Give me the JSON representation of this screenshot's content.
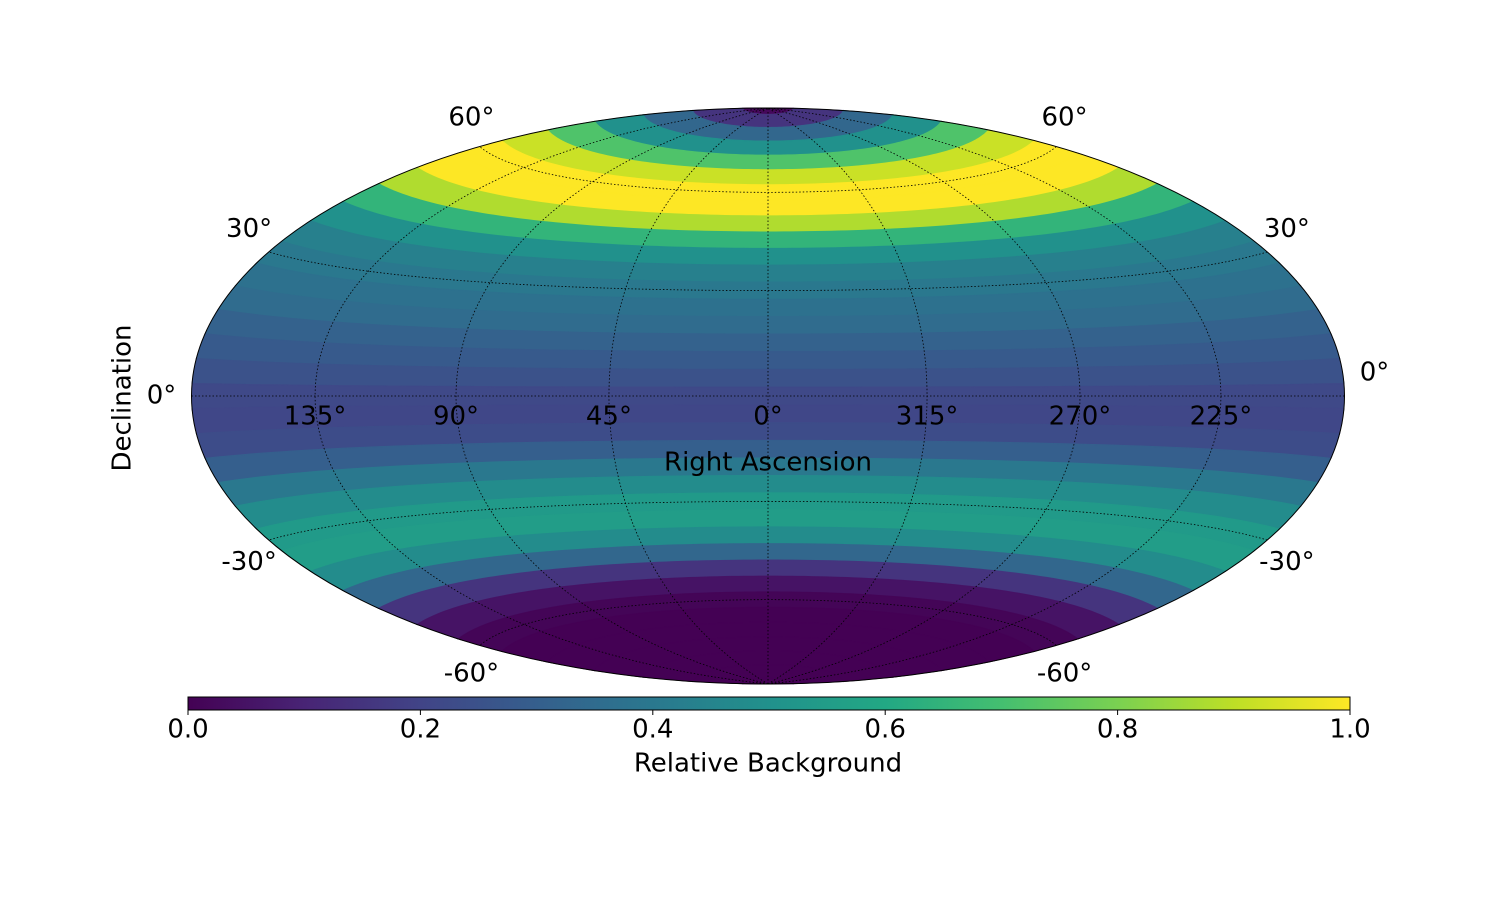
{
  "chart_data": {
    "type": "sky-map",
    "projection": "hammer",
    "colormap": "viridis",
    "xlabel": "Right Ascension",
    "ylabel": "Declination",
    "colorbar_label": "Relative Background",
    "declinations": [
      90,
      85,
      80,
      75,
      70,
      65,
      60,
      55,
      50,
      45,
      40,
      35,
      30,
      25,
      20,
      15,
      10,
      5,
      0,
      -5,
      -10,
      -15,
      -20,
      -25,
      -30,
      -35,
      -40,
      -45,
      -50,
      -55,
      -60,
      -65,
      -70,
      -75,
      -80,
      -85,
      -90
    ],
    "values": [
      0.02,
      0.15,
      0.33,
      0.5,
      0.72,
      0.92,
      1.0,
      1.0,
      0.88,
      0.65,
      0.5,
      0.43,
      0.4,
      0.37,
      0.35,
      0.31,
      0.28,
      0.25,
      0.22,
      0.21,
      0.23,
      0.3,
      0.4,
      0.48,
      0.54,
      0.55,
      0.48,
      0.33,
      0.15,
      0.05,
      0.01,
      0,
      0,
      0,
      0,
      0,
      0
    ],
    "xticks": [
      {
        "value": 135,
        "label": "135°"
      },
      {
        "value": 90,
        "label": "90°"
      },
      {
        "value": 45,
        "label": "45°"
      },
      {
        "value": 0,
        "label": "0°"
      },
      {
        "value": 315,
        "label": "315°"
      },
      {
        "value": 270,
        "label": "270°"
      },
      {
        "value": 225,
        "label": "225°"
      }
    ],
    "yticks": [
      {
        "value": 60,
        "label": "60°"
      },
      {
        "value": 30,
        "label": "30°"
      },
      {
        "value": 0,
        "label": "0°"
      },
      {
        "value": -30,
        "label": "-30°"
      },
      {
        "value": -60,
        "label": "-60°"
      }
    ],
    "clim": [
      0,
      1
    ],
    "cticks": [
      {
        "value": 0,
        "label": "0.0"
      },
      0.2,
      0.4,
      0.6,
      0.8,
      {
        "value": 1,
        "label": "1.0"
      }
    ],
    "grid": true
  }
}
